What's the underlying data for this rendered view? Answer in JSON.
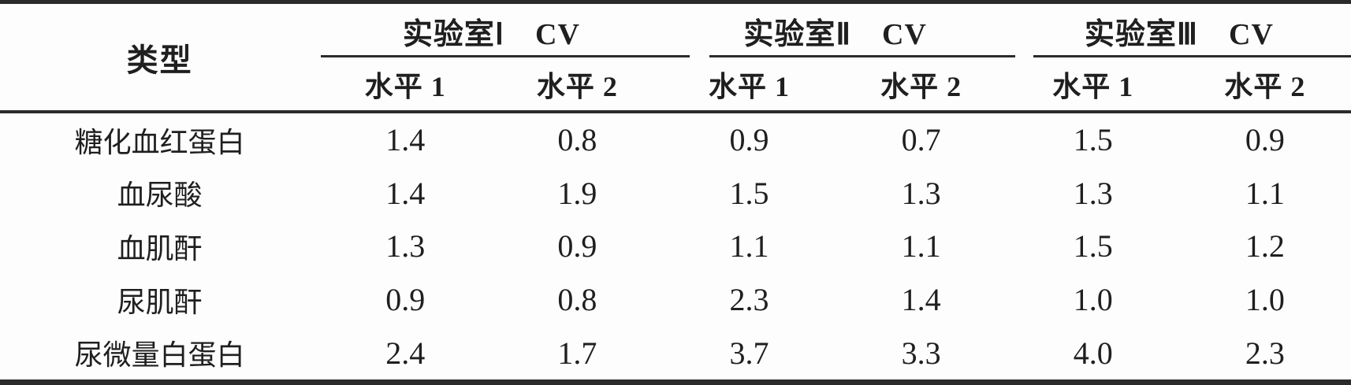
{
  "table": {
    "header": {
      "type_label": "类型",
      "groups": [
        {
          "label": "实验室Ⅰ　CV",
          "sublevels": [
            "水平 1",
            "水平 2"
          ]
        },
        {
          "label": "实验室Ⅱ　CV",
          "sublevels": [
            "水平 1",
            "水平 2"
          ]
        },
        {
          "label": "实验室Ⅲ　CV",
          "sublevels": [
            "水平 1",
            "水平 2"
          ]
        }
      ]
    },
    "rows": [
      {
        "type": "糖化血红蛋白",
        "values": [
          "1.4",
          "0.8",
          "0.9",
          "0.7",
          "1.5",
          "0.9"
        ]
      },
      {
        "type": "血尿酸",
        "values": [
          "1.4",
          "1.9",
          "1.5",
          "1.3",
          "1.3",
          "1.1"
        ]
      },
      {
        "type": "血肌酐",
        "values": [
          "1.3",
          "0.9",
          "1.1",
          "1.1",
          "1.5",
          "1.2"
        ]
      },
      {
        "type": "尿肌酐",
        "values": [
          "0.9",
          "0.8",
          "2.3",
          "1.4",
          "1.0",
          "1.0"
        ]
      },
      {
        "type": "尿微量白蛋白",
        "values": [
          "2.4",
          "1.7",
          "3.7",
          "3.3",
          "4.0",
          "2.3"
        ]
      }
    ]
  },
  "chart_data": {
    "type": "table",
    "columns": [
      "类型",
      "实验室Ⅰ CV 水平1",
      "实验室Ⅰ CV 水平2",
      "实验室Ⅱ CV 水平1",
      "实验室Ⅱ CV 水平2",
      "实验室Ⅲ CV 水平1",
      "实验室Ⅲ CV 水平2"
    ],
    "rows": [
      [
        "糖化血红蛋白",
        1.4,
        0.8,
        0.9,
        0.7,
        1.5,
        0.9
      ],
      [
        "血尿酸",
        1.4,
        1.9,
        1.5,
        1.3,
        1.3,
        1.1
      ],
      [
        "血肌酐",
        1.3,
        0.9,
        1.1,
        1.1,
        1.5,
        1.2
      ],
      [
        "尿肌酐",
        0.9,
        0.8,
        2.3,
        1.4,
        1.0,
        1.0
      ],
      [
        "尿微量白蛋白",
        2.4,
        1.7,
        3.7,
        3.3,
        4.0,
        2.3
      ]
    ]
  },
  "colors": {
    "rule": "#2b2b2b",
    "text": "#1f1f1f",
    "background": "#fdfdfd"
  }
}
